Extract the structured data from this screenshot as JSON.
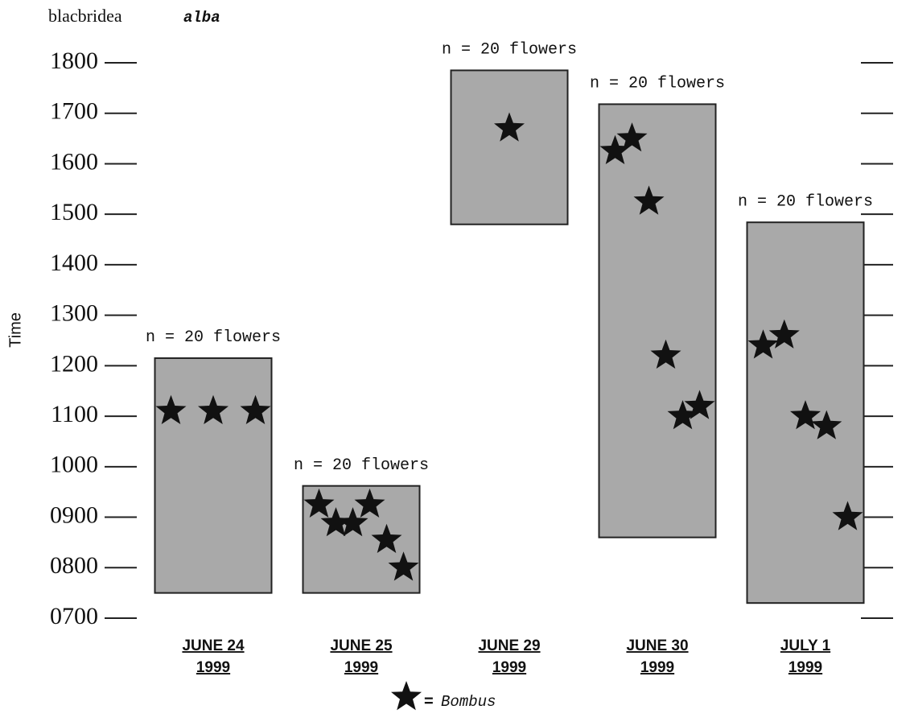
{
  "chart_data": {
    "type": "floating_bar",
    "title": "blacbridea",
    "title_emphasis": "alba",
    "y_label": "Time",
    "categories": [
      "JUNE 24",
      "JUNE 25",
      "JUNE 29",
      "JUNE 30",
      "JULY 1"
    ],
    "category_years": [
      "1999",
      "1999",
      "1999",
      "1999",
      "1999"
    ],
    "annotations": [
      "n = 20 flowers",
      "n = 20 flowers",
      "n = 20 flowers",
      "n = 20 flowers",
      "n = 20 flowers"
    ],
    "start": [
      750,
      750,
      1480,
      860,
      730
    ],
    "end": [
      1215,
      962,
      1785,
      1718,
      1484
    ],
    "color": "#a9a9a9",
    "points": {
      "name": "Bombus",
      "color": "#111111",
      "values": [
        [
          1110,
          1110,
          1110
        ],
        [
          925,
          888,
          888,
          925,
          855,
          800
        ],
        [
          1670
        ],
        [
          1625,
          1650,
          1525,
          1220,
          1100,
          1120
        ],
        [
          1240,
          1260,
          1100,
          1080,
          900
        ]
      ]
    },
    "legend_symbol_text": "=",
    "ylim": [
      700,
      1800
    ],
    "yticks": [
      {
        "value": 700,
        "label": "0700"
      },
      {
        "value": 800,
        "label": "0800"
      },
      {
        "value": 900,
        "label": "0900"
      },
      1000,
      1100,
      1200,
      1300,
      1400,
      1500,
      1600,
      1700,
      1800
    ]
  }
}
